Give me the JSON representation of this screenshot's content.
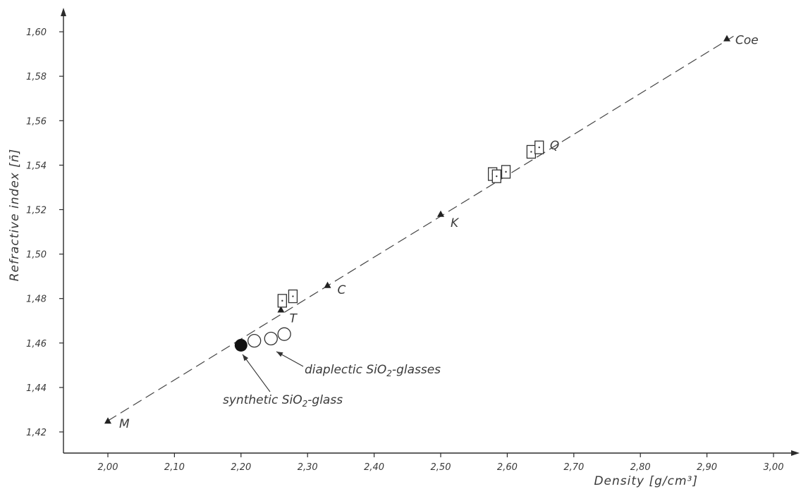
{
  "chart_data": {
    "type": "scatter",
    "xlabel": "Density [g/cm³]",
    "ylabel": "Refractive index [n̄]",
    "xlim": [
      1.94,
      3.05
    ],
    "ylim": [
      1.413,
      1.612
    ],
    "xticks": [
      2.0,
      2.1,
      2.2,
      2.3,
      2.4,
      2.5,
      2.6,
      2.7,
      2.8,
      2.9,
      3.0
    ],
    "xtick_labels": [
      "2,00",
      "2,10",
      "2,20",
      "2,30",
      "2,40",
      "2,50",
      "2,60",
      "2,70",
      "2,80",
      "2,90",
      "3,00"
    ],
    "yticks": [
      1.42,
      1.44,
      1.46,
      1.48,
      1.5,
      1.52,
      1.54,
      1.56,
      1.58,
      1.6
    ],
    "ytick_labels": [
      "1,42",
      "1,44",
      "1,46",
      "1,48",
      "1,50",
      "1,52",
      "1,54",
      "1,56",
      "1,58",
      "1,60"
    ],
    "grid": false,
    "trend_line": {
      "style": "dashed",
      "x": [
        2.0,
        2.94
      ],
      "y": [
        1.425,
        1.598
      ]
    },
    "series": [
      {
        "marker": "filled-triangle",
        "points": [
          {
            "x": 2.0,
            "y": 1.425,
            "label": "M"
          },
          {
            "x": 2.26,
            "y": 1.475,
            "label": "T"
          },
          {
            "x": 2.33,
            "y": 1.486,
            "label": "C"
          },
          {
            "x": 2.5,
            "y": 1.518,
            "label": "K"
          },
          {
            "x": 2.645,
            "y": 1.549,
            "label": "Q"
          },
          {
            "x": 2.93,
            "y": 1.597,
            "label": "Coe"
          }
        ]
      },
      {
        "marker": "filled-circle",
        "points": [
          {
            "x": 2.2,
            "y": 1.459
          }
        ]
      },
      {
        "marker": "open-circle",
        "points": [
          {
            "x": 2.22,
            "y": 1.461
          },
          {
            "x": 2.245,
            "y": 1.462
          },
          {
            "x": 2.265,
            "y": 1.464
          }
        ]
      },
      {
        "marker": "open-rectangle",
        "points": [
          {
            "x": 2.262,
            "y": 1.479
          },
          {
            "x": 2.278,
            "y": 1.481
          },
          {
            "x": 2.578,
            "y": 1.536
          },
          {
            "x": 2.584,
            "y": 1.535
          },
          {
            "x": 2.598,
            "y": 1.537
          },
          {
            "x": 2.636,
            "y": 1.546
          },
          {
            "x": 2.648,
            "y": 1.548
          }
        ]
      }
    ],
    "annotations": [
      {
        "text_before": "diaplectic SiO",
        "sub": "2",
        "text_after": "-glasses",
        "points_to": {
          "x": 2.245,
          "y": 1.4605
        }
      },
      {
        "text_before": "synthetic SiO",
        "sub": "2",
        "text_after": "-glass",
        "points_to": {
          "x": 2.2,
          "y": 1.4565
        }
      }
    ]
  }
}
